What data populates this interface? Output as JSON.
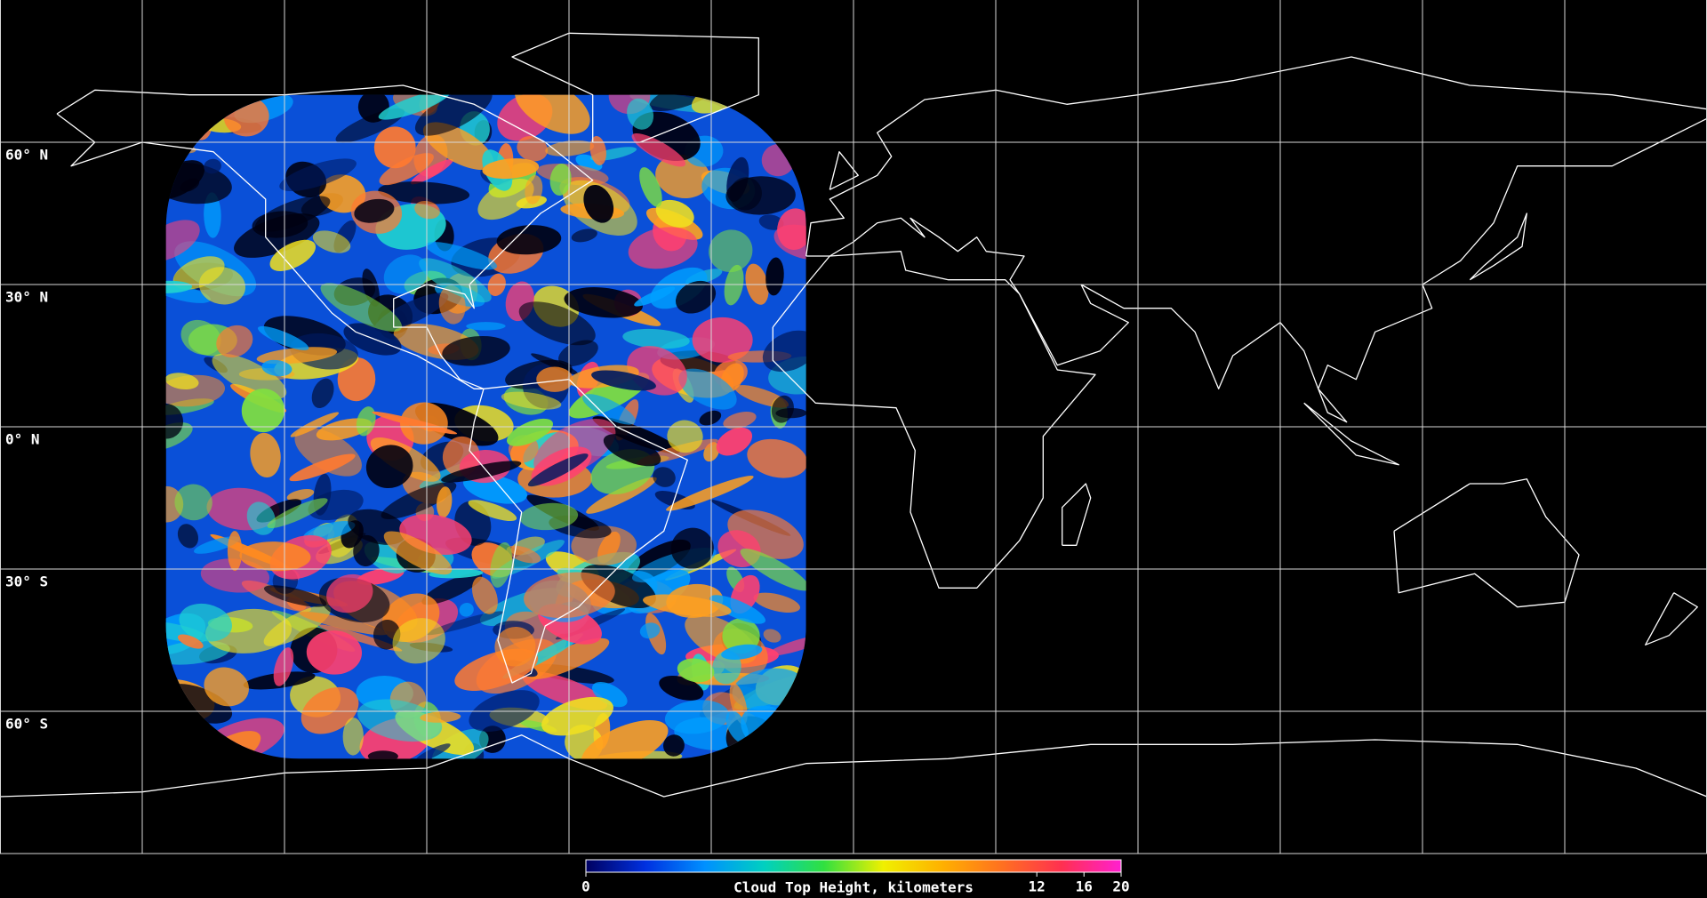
{
  "map": {
    "type": "map",
    "xlim": [
      -180,
      180
    ],
    "ylim": [
      -90,
      90
    ],
    "xticks": [
      -150,
      -120,
      -90,
      -60,
      -30,
      0,
      30,
      60,
      90,
      120,
      150
    ],
    "yticks": [
      {
        "value": 60,
        "label": "60° N"
      },
      {
        "value": 30,
        "label": "30° N"
      },
      {
        "value": 0,
        "label": "0° N"
      },
      {
        "value": -30,
        "label": "30° S"
      },
      {
        "value": -60,
        "label": "60° S"
      }
    ],
    "grid": true,
    "colorbar": {
      "title": "Cloud Top Height, kilometers",
      "lim": [
        0,
        20
      ],
      "scale": "log1p",
      "ticks": [
        0,
        12,
        16,
        20
      ],
      "colors": [
        "#000060",
        "#0030e0",
        "#0090ff",
        "#00d0c0",
        "#30e040",
        "#f0f000",
        "#ffb000",
        "#ff7020",
        "#ff3050",
        "#ff20d0"
      ]
    }
  }
}
